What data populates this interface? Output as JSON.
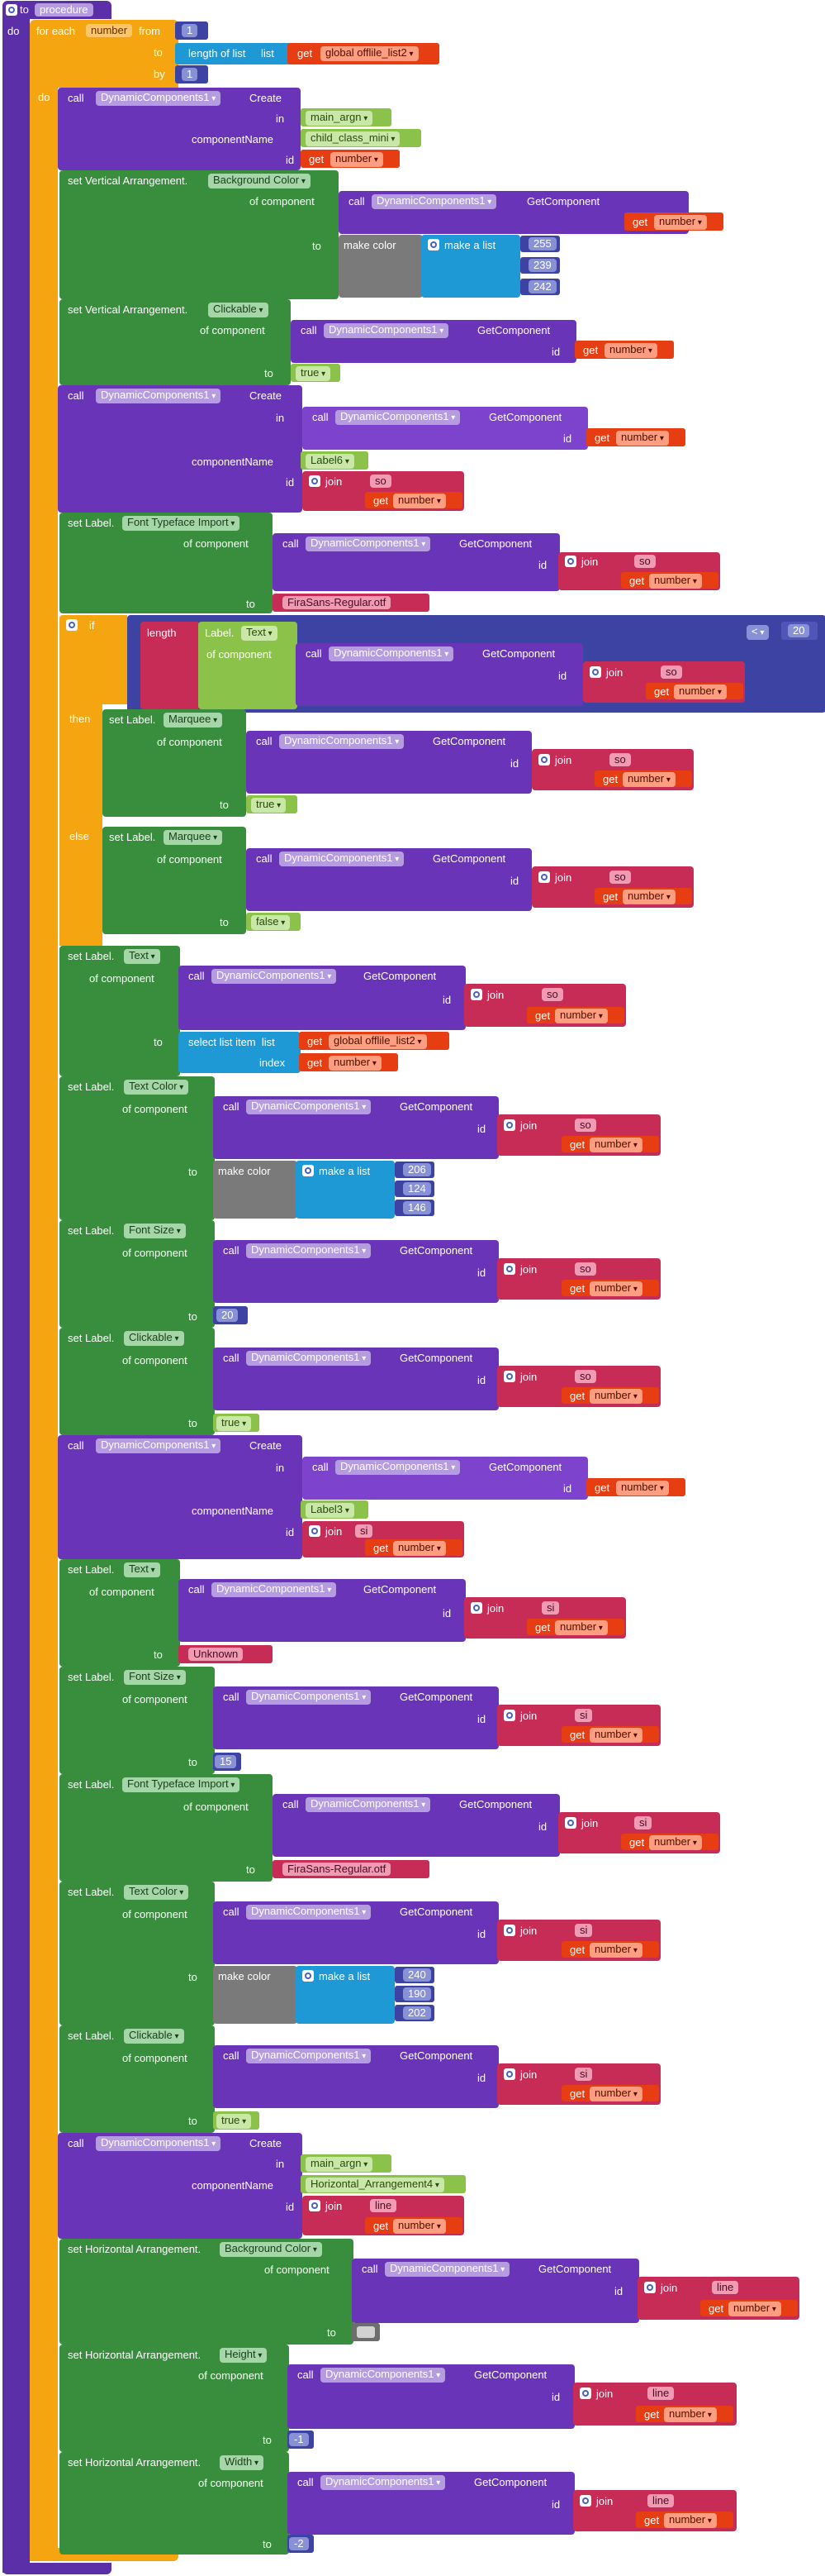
{
  "procedure": {
    "to_label": "to",
    "name": "procedure",
    "do_label": "do"
  },
  "loop": {
    "for_each": "for each",
    "var_name": "number",
    "from": "from",
    "from_value": "1",
    "to": "to",
    "length_of_list": "length of list",
    "list": "list",
    "get": "get",
    "global_var": "global offlile_list2",
    "by": "by",
    "by_value": "1",
    "do": "do"
  },
  "kw": {
    "call": "call",
    "create": "Create",
    "in": "in",
    "componentName": "componentName",
    "id": "id",
    "of_component": "of component",
    "to": "to",
    "get_component": "GetComponent",
    "get": "get",
    "join": "join",
    "make_color": "make color",
    "make_a_list": "make a list",
    "set": "set",
    "if": "if",
    "then": "then",
    "else": "else",
    "length": "length",
    "index": "index",
    "select_list_item": "select list item",
    "list": "list"
  },
  "components": {
    "dyn": "DynamicComponents1",
    "main_argn": "main_argn",
    "child_class_mini": "child_class_mini",
    "number": "number",
    "label6": "Label6",
    "label3": "Label3",
    "horiz4": "Horizontal_Arrangement4",
    "so": "so",
    "si": "si",
    "line": "line"
  },
  "types": {
    "vertical": "Vertical Arrangement.",
    "label": "Label.",
    "horizontal": "Horizontal Arrangement."
  },
  "props": {
    "background_color": "Background Color",
    "clickable": "Clickable",
    "font_typeface_import": "Font Typeface Import",
    "text": "Text",
    "marquee": "Marquee",
    "text_color": "Text Color",
    "font_size": "Font Size",
    "height": "Height",
    "width": "Width"
  },
  "values": {
    "c1": [
      "255",
      "239",
      "242"
    ],
    "c2": [
      "206",
      "124",
      "146"
    ],
    "c3": [
      "240",
      "190",
      "202"
    ],
    "true": "true",
    "false": "false",
    "font_file": "FiraSans-Regular.otf",
    "lt": "<",
    "max_len": "20",
    "font_size": "20",
    "font_size2": "15",
    "unknown": "Unknown",
    "height": "-1",
    "width": "-2"
  }
}
